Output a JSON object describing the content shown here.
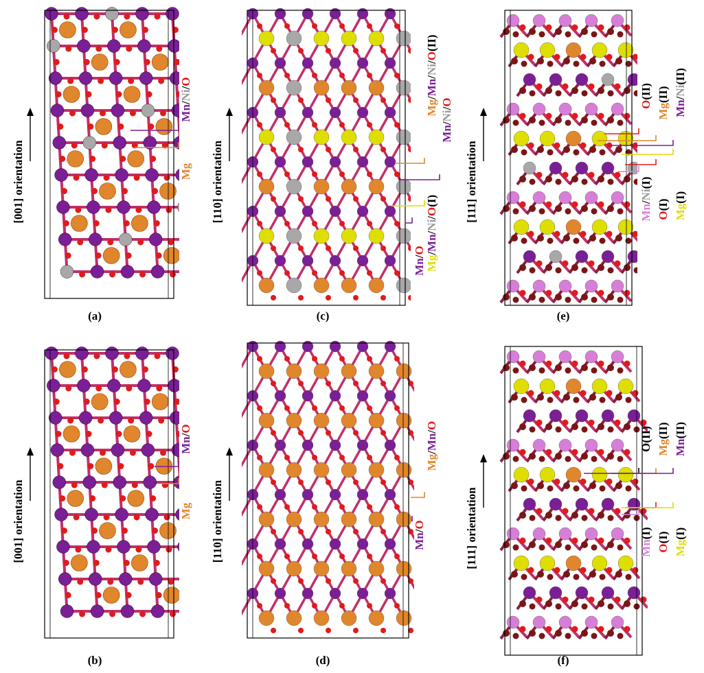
{
  "colors": {
    "Mn": "#7a1f96",
    "MnLight": "#d77fd8",
    "Mg": "#e0862c",
    "Ni": "#a8a8a8",
    "O": "#e01b1b",
    "OII": "#7a1616",
    "yellow": "#eeee20",
    "bond": "#c0306a",
    "bondGray": "#b8b0b0"
  },
  "colors_mg_I": "#dede00",
  "panels": [
    {
      "caption": "(a)",
      "orientation": "[001] orientation",
      "labels": [
        {
          "parts": [
            {
              "t": "Mn",
              "c": "#7a1f96"
            },
            {
              "t": "/",
              "c": "#000000"
            },
            {
              "t": "Ni",
              "c": "#9a9a9a"
            },
            {
              "t": "/",
              "c": "#000000"
            },
            {
              "t": "O",
              "c": "#e01b1b"
            }
          ]
        },
        {
          "parts": [
            {
              "t": "Mg",
              "c": "#e0862c"
            }
          ]
        }
      ]
    },
    {
      "caption": "(b)",
      "orientation": "[001] orientation",
      "labels": [
        {
          "parts": [
            {
              "t": "Mn",
              "c": "#7a1f96"
            },
            {
              "t": "/",
              "c": "#000000"
            },
            {
              "t": "O",
              "c": "#e01b1b"
            }
          ]
        },
        {
          "parts": [
            {
              "t": "Mg",
              "c": "#e0862c"
            }
          ]
        }
      ]
    },
    {
      "caption": "(c)",
      "orientation": "[110] orientation",
      "labels": [
        {
          "parts": [
            {
              "t": "Mg",
              "c": "#e0862c"
            },
            {
              "t": "/",
              "c": "#000000"
            },
            {
              "t": "Mn",
              "c": "#7a1f96"
            },
            {
              "t": "/",
              "c": "#000000"
            },
            {
              "t": "Ni",
              "c": "#9a9a9a"
            },
            {
              "t": "/",
              "c": "#000000"
            },
            {
              "t": "O",
              "c": "#e01b1b"
            },
            {
              "t": "(II)",
              "c": "#000000"
            }
          ]
        },
        {
          "parts": [
            {
              "t": "Mn",
              "c": "#7a1f96"
            },
            {
              "t": "/",
              "c": "#000000"
            },
            {
              "t": "Ni",
              "c": "#9a9a9a"
            },
            {
              "t": "/",
              "c": "#000000"
            },
            {
              "t": "O",
              "c": "#e01b1b"
            }
          ]
        },
        {
          "parts": [
            {
              "t": "Mg",
              "c": "#dede00"
            },
            {
              "t": "/",
              "c": "#000000"
            },
            {
              "t": "Mn",
              "c": "#7a1f96"
            },
            {
              "t": "/",
              "c": "#000000"
            },
            {
              "t": "Ni",
              "c": "#9a9a9a"
            },
            {
              "t": "/",
              "c": "#000000"
            },
            {
              "t": "O",
              "c": "#e01b1b"
            },
            {
              "t": "(I)",
              "c": "#000000"
            }
          ]
        },
        {
          "parts": [
            {
              "t": "Mn",
              "c": "#7a1f96"
            },
            {
              "t": "/",
              "c": "#000000"
            },
            {
              "t": "O",
              "c": "#e01b1b"
            }
          ]
        }
      ]
    },
    {
      "caption": "(d)",
      "orientation": "[110] orientation",
      "labels": [
        {
          "parts": [
            {
              "t": "Mg",
              "c": "#e0862c"
            },
            {
              "t": "/",
              "c": "#000000"
            },
            {
              "t": "Mn",
              "c": "#7a1f96"
            },
            {
              "t": "/",
              "c": "#000000"
            },
            {
              "t": "O",
              "c": "#e01b1b"
            }
          ]
        },
        {
          "parts": [
            {
              "t": "Mn",
              "c": "#7a1f96"
            },
            {
              "t": "/",
              "c": "#000000"
            },
            {
              "t": "O",
              "c": "#e01b1b"
            }
          ]
        }
      ]
    },
    {
      "caption": "(e)",
      "orientation": "[111] orientation",
      "labels": [
        {
          "parts": [
            {
              "t": "O",
              "c": "#e01b1b"
            },
            {
              "t": "(II)",
              "c": "#000000"
            }
          ]
        },
        {
          "parts": [
            {
              "t": "Mg",
              "c": "#e0862c"
            },
            {
              "t": "(II)",
              "c": "#000000"
            }
          ]
        },
        {
          "parts": [
            {
              "t": "Mn",
              "c": "#7a1f96"
            },
            {
              "t": "/",
              "c": "#000000"
            },
            {
              "t": "Ni",
              "c": "#9a9a9a"
            },
            {
              "t": "(II)",
              "c": "#000000"
            }
          ]
        },
        {
          "parts": [
            {
              "t": "Mn",
              "c": "#d77fd8"
            },
            {
              "t": "/",
              "c": "#000000"
            },
            {
              "t": "Ni",
              "c": "#9a9a9a"
            },
            {
              "t": "(I)",
              "c": "#000000"
            }
          ]
        },
        {
          "parts": [
            {
              "t": "O",
              "c": "#e01b1b"
            },
            {
              "t": "(I)",
              "c": "#000000"
            }
          ]
        },
        {
          "parts": [
            {
              "t": "Mg",
              "c": "#dede00"
            },
            {
              "t": "(I)",
              "c": "#000000"
            }
          ]
        }
      ]
    },
    {
      "caption": "(f)",
      "orientation": "[111] orientation",
      "labels": [
        {
          "parts": [
            {
              "t": "O",
              "c": "#000000"
            },
            {
              "t": "(II)",
              "c": "#000000"
            }
          ]
        },
        {
          "parts": [
            {
              "t": "Mg",
              "c": "#e0862c"
            },
            {
              "t": "(II)",
              "c": "#000000"
            }
          ]
        },
        {
          "parts": [
            {
              "t": "Mn",
              "c": "#7a1f96"
            },
            {
              "t": "(II)",
              "c": "#000000"
            }
          ]
        },
        {
          "parts": [
            {
              "t": "Mn",
              "c": "#d77fd8"
            },
            {
              "t": "(I)",
              "c": "#000000"
            }
          ]
        },
        {
          "parts": [
            {
              "t": "O",
              "c": "#e01b1b"
            },
            {
              "t": "(I)",
              "c": "#000000"
            }
          ]
        },
        {
          "parts": [
            {
              "t": "Mg",
              "c": "#dede00"
            },
            {
              "t": "(I)",
              "c": "#000000"
            }
          ]
        }
      ]
    }
  ]
}
